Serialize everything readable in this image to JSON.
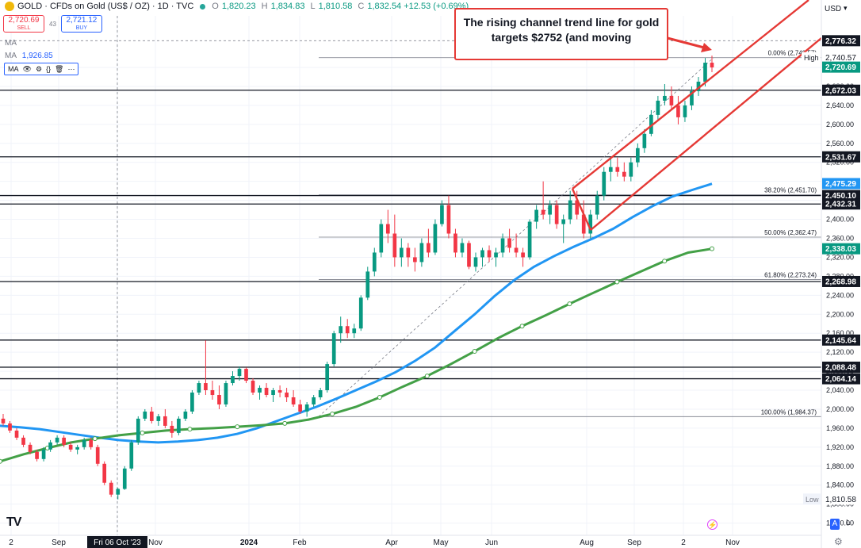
{
  "header": {
    "title": "GOLD · CFDs on Gold (US$ / OZ) · 1D · TVC",
    "o_label": "O",
    "o_value": "1,820.23",
    "h_label": "H",
    "h_value": "1,834.83",
    "l_label": "L",
    "l_value": "1,810.58",
    "c_label": "C",
    "c_value": "1,832.54 +12.53 (+0.69%)"
  },
  "trade": {
    "sell_price": "2,720.69",
    "sell_label": "SELL",
    "spread": "43",
    "buy_price": "2,721.12",
    "buy_label": "BUY"
  },
  "indicators": [
    {
      "name": "MA",
      "value": ""
    },
    {
      "name": "MA",
      "value": "1,926.85"
    },
    {
      "name": "MA",
      "value": ""
    }
  ],
  "annotation": {
    "text": "The rising channel trend line for gold targets $2752 (and moving"
  },
  "axis": {
    "currency": "USD"
  },
  "buttons": {
    "auto": "A",
    "log": "L"
  },
  "colors": {
    "up": "#089981",
    "down": "#f23645",
    "ma_fast": "#2196f3",
    "ma_slow": "#43a047",
    "channel": "#e53935",
    "price_box": "#089981"
  },
  "chart_data": {
    "type": "candlestick",
    "ylim": [
      1740,
      2800
    ],
    "y_ticks": [
      1760,
      1800,
      1840,
      1880,
      1920,
      1960,
      2000,
      2040,
      2080,
      2120,
      2160,
      2200,
      2240,
      2280,
      2320,
      2360,
      2400,
      2440,
      2480,
      2520,
      2560,
      2600,
      2640,
      2680,
      2720
    ],
    "x_labels": [
      "2",
      "Sep",
      "Fri 06 Oct '23",
      "Nov",
      "2024",
      "Feb",
      "Apr",
      "May",
      "Jun",
      "Aug",
      "Sep",
      "2",
      "Nov"
    ],
    "candles": [
      [
        1980,
        1990,
        1965,
        1970
      ],
      [
        1970,
        1975,
        1950,
        1955
      ],
      [
        1955,
        1960,
        1935,
        1940
      ],
      [
        1940,
        1945,
        1920,
        1925
      ],
      [
        1925,
        1930,
        1905,
        1910
      ],
      [
        1910,
        1915,
        1890,
        1895
      ],
      [
        1895,
        1920,
        1890,
        1915
      ],
      [
        1915,
        1935,
        1910,
        1930
      ],
      [
        1930,
        1945,
        1925,
        1940
      ],
      [
        1940,
        1945,
        1920,
        1925
      ],
      [
        1925,
        1930,
        1910,
        1915
      ],
      [
        1915,
        1925,
        1905,
        1920
      ],
      [
        1920,
        1940,
        1915,
        1935
      ],
      [
        1935,
        1940,
        1915,
        1920
      ],
      [
        1920,
        1925,
        1880,
        1885
      ],
      [
        1885,
        1890,
        1840,
        1845
      ],
      [
        1845,
        1850,
        1815,
        1820
      ],
      [
        1820,
        1834,
        1810,
        1832
      ],
      [
        1832,
        1880,
        1830,
        1875
      ],
      [
        1875,
        1935,
        1870,
        1930
      ],
      [
        1930,
        1985,
        1925,
        1980
      ],
      [
        1980,
        2000,
        1975,
        1995
      ],
      [
        1995,
        2005,
        1970,
        1975
      ],
      [
        1975,
        1990,
        1965,
        1985
      ],
      [
        1985,
        2000,
        1960,
        1965
      ],
      [
        1965,
        1975,
        1940,
        1950
      ],
      [
        1950,
        1985,
        1945,
        1980
      ],
      [
        1980,
        2000,
        1975,
        1995
      ],
      [
        1995,
        2040,
        1990,
        2035
      ],
      [
        2035,
        2060,
        2030,
        2055
      ],
      [
        2055,
        2145,
        2030,
        2040
      ],
      [
        2040,
        2060,
        2020,
        2030
      ],
      [
        2030,
        2050,
        2000,
        2010
      ],
      [
        2010,
        2060,
        2005,
        2055
      ],
      [
        2055,
        2080,
        2050,
        2070
      ],
      [
        2070,
        2090,
        2060,
        2085
      ],
      [
        2085,
        2088,
        2055,
        2060
      ],
      [
        2060,
        2065,
        2030,
        2035
      ],
      [
        2035,
        2050,
        2020,
        2045
      ],
      [
        2045,
        2055,
        2025,
        2030
      ],
      [
        2030,
        2045,
        2015,
        2040
      ],
      [
        2040,
        2050,
        2025,
        2035
      ],
      [
        2035,
        2045,
        2015,
        2025
      ],
      [
        2025,
        2040,
        2005,
        2010
      ],
      [
        2010,
        2020,
        1990,
        1995
      ],
      [
        1995,
        2015,
        1984,
        2010
      ],
      [
        2010,
        2030,
        2005,
        2025
      ],
      [
        2025,
        2045,
        2020,
        2040
      ],
      [
        2040,
        2100,
        2035,
        2095
      ],
      [
        2095,
        2165,
        2090,
        2160
      ],
      [
        2160,
        2195,
        2140,
        2175
      ],
      [
        2175,
        2190,
        2150,
        2160
      ],
      [
        2160,
        2180,
        2150,
        2170
      ],
      [
        2170,
        2240,
        2165,
        2235
      ],
      [
        2235,
        2300,
        2230,
        2290
      ],
      [
        2290,
        2340,
        2280,
        2330
      ],
      [
        2330,
        2400,
        2320,
        2390
      ],
      [
        2390,
        2420,
        2350,
        2370
      ],
      [
        2370,
        2410,
        2300,
        2320
      ],
      [
        2320,
        2360,
        2300,
        2340
      ],
      [
        2340,
        2350,
        2300,
        2320
      ],
      [
        2320,
        2340,
        2290,
        2310
      ],
      [
        2310,
        2360,
        2300,
        2350
      ],
      [
        2350,
        2380,
        2320,
        2330
      ],
      [
        2330,
        2400,
        2325,
        2390
      ],
      [
        2390,
        2440,
        2385,
        2430
      ],
      [
        2430,
        2450,
        2360,
        2370
      ],
      [
        2370,
        2380,
        2320,
        2330
      ],
      [
        2330,
        2360,
        2320,
        2350
      ],
      [
        2350,
        2355,
        2295,
        2300
      ],
      [
        2300,
        2330,
        2290,
        2320
      ],
      [
        2320,
        2340,
        2300,
        2335
      ],
      [
        2335,
        2345,
        2310,
        2320
      ],
      [
        2320,
        2340,
        2300,
        2330
      ],
      [
        2330,
        2370,
        2320,
        2360
      ],
      [
        2360,
        2380,
        2330,
        2340
      ],
      [
        2340,
        2370,
        2320,
        2330
      ],
      [
        2330,
        2340,
        2300,
        2320
      ],
      [
        2320,
        2400,
        2315,
        2395
      ],
      [
        2395,
        2430,
        2380,
        2420
      ],
      [
        2420,
        2480,
        2400,
        2410
      ],
      [
        2410,
        2440,
        2390,
        2430
      ],
      [
        2430,
        2440,
        2380,
        2390
      ],
      [
        2390,
        2410,
        2350,
        2400
      ],
      [
        2400,
        2460,
        2390,
        2440
      ],
      [
        2440,
        2460,
        2400,
        2410
      ],
      [
        2410,
        2440,
        2360,
        2370
      ],
      [
        2370,
        2420,
        2360,
        2410
      ],
      [
        2410,
        2460,
        2400,
        2450
      ],
      [
        2450,
        2510,
        2440,
        2500
      ],
      [
        2500,
        2530,
        2480,
        2510
      ],
      [
        2510,
        2530,
        2490,
        2500
      ],
      [
        2500,
        2520,
        2480,
        2490
      ],
      [
        2490,
        2530,
        2480,
        2520
      ],
      [
        2520,
        2560,
        2510,
        2550
      ],
      [
        2550,
        2590,
        2540,
        2580
      ],
      [
        2580,
        2630,
        2575,
        2620
      ],
      [
        2620,
        2660,
        2610,
        2650
      ],
      [
        2650,
        2685,
        2640,
        2660
      ],
      [
        2660,
        2680,
        2630,
        2640
      ],
      [
        2640,
        2660,
        2600,
        2615
      ],
      [
        2615,
        2650,
        2605,
        2640
      ],
      [
        2640,
        2680,
        2630,
        2670
      ],
      [
        2670,
        2700,
        2660,
        2690
      ],
      [
        2690,
        2740,
        2680,
        2730
      ],
      [
        2730,
        2745,
        2710,
        2720
      ]
    ],
    "series": [
      {
        "name": "MA",
        "values": [
          1965,
          1962,
          1958,
          1952,
          1946,
          1940,
          1935,
          1932,
          1930,
          1932,
          1935,
          1940,
          1948,
          1960,
          1975,
          1990,
          2005,
          2022,
          2040,
          2058,
          2078,
          2102,
          2130,
          2165,
          2200,
          2238,
          2272,
          2300,
          2322,
          2342,
          2360,
          2380,
          2405,
          2428,
          2448,
          2462,
          2475
        ]
      },
      {
        "name": "MA",
        "values": [
          1890,
          1905,
          1918,
          1930,
          1938,
          1945,
          1950,
          1955,
          1958,
          1960,
          1963,
          1966,
          1970,
          1978,
          1990,
          2005,
          2025,
          2048,
          2070,
          2095,
          2122,
          2150,
          2175,
          2198,
          2222,
          2245,
          2268,
          2290,
          2312,
          2330,
          2338
        ]
      }
    ],
    "price_labels": [
      "2,776.32",
      "2,740.57",
      "2,720.69",
      "2,672.03",
      "2,531.67",
      "2,475.29",
      "2,450.10",
      "2,432.31",
      "2,338.03",
      "2,268.98",
      "2,145.64",
      "2,088.48",
      "2,064.14",
      "1,810.58"
    ],
    "price_label_values": [
      2776.32,
      2740.57,
      2720.69,
      2672.03,
      2531.67,
      2475.29,
      2450.1,
      2432.31,
      2338.03,
      2268.98,
      2145.64,
      2088.48,
      2064.14,
      1810.58
    ],
    "price_label_styles": [
      "dark",
      "plain",
      "green",
      "dark",
      "dark",
      "blue",
      "dark",
      "dark",
      "green",
      "dark",
      "dark",
      "dark",
      "dark",
      "plain"
    ],
    "high_label": "High",
    "low_label": "Low",
    "horizontal_levels": [
      2672.03,
      2531.67,
      2450.1,
      2432.31,
      2268.98,
      2145.64,
      2088.48,
      2064.14
    ],
    "fib_levels": [
      {
        "label": "0.00% (2,740.57)",
        "value": 2740.57
      },
      {
        "label": "38.20% (2,451.70)",
        "value": 2451.7
      },
      {
        "label": "50.00% (2,362.47)",
        "value": 2362.47
      },
      {
        "label": "61.80% (2,273.24)",
        "value": 2273.24
      },
      {
        "label": "100.00% (1,984.37)",
        "value": 1984.37
      }
    ]
  }
}
